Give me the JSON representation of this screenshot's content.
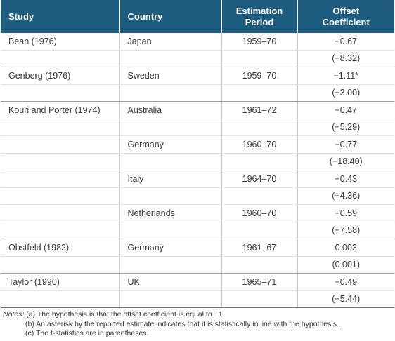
{
  "table": {
    "headers": {
      "study": "Study",
      "country": "Country",
      "period_line1": "Estimation",
      "period_line2": "Period",
      "coef_line1": "Offset",
      "coef_line2": "Coefficient"
    },
    "rows": [
      {
        "study": "Bean (1976)",
        "country": "Japan",
        "period": "1959–70",
        "coef": "−0.67",
        "tstat": "(−8.32)"
      },
      {
        "study": "Genberg (1976)",
        "country": "Sweden",
        "period": "1959–70",
        "coef": "−1.11*",
        "tstat": "(−3.00)"
      },
      {
        "study": "Kouri and Porter (1974)",
        "country": "Australia",
        "period": "1961–72",
        "coef": "−0.47",
        "tstat": "(−5.29)"
      },
      {
        "study": "",
        "country": "Germany",
        "period": "1960–70",
        "coef": "−0.77",
        "tstat": "(−18.40)"
      },
      {
        "study": "",
        "country": "Italy",
        "period": "1964–70",
        "coef": "−0.43",
        "tstat": "(−4.36)"
      },
      {
        "study": "",
        "country": "Netherlands",
        "period": "1960–70",
        "coef": "−0.59",
        "tstat": "(−7.58)"
      },
      {
        "study": "Obstfeld (1982)",
        "country": "Germany",
        "period": "1961–67",
        "coef": "0.003",
        "tstat": "(0.001)"
      },
      {
        "study": "Taylor (1990)",
        "country": "UK",
        "period": "1965–71",
        "coef": "−0.49",
        "tstat": "(−5.44)"
      }
    ]
  },
  "notes": {
    "label": "Notes:",
    "a": "(a) The hypothesis is that the offset coefficient is equal to −1.",
    "b": "(b) An asterisk by the reported estimate indicates that it is statistically in line with the hypothesis.",
    "c": "(c) The t-statistics are in parentheses."
  },
  "colors": {
    "header_bg": "#1d5b7f",
    "header_text": "#ffffff"
  }
}
